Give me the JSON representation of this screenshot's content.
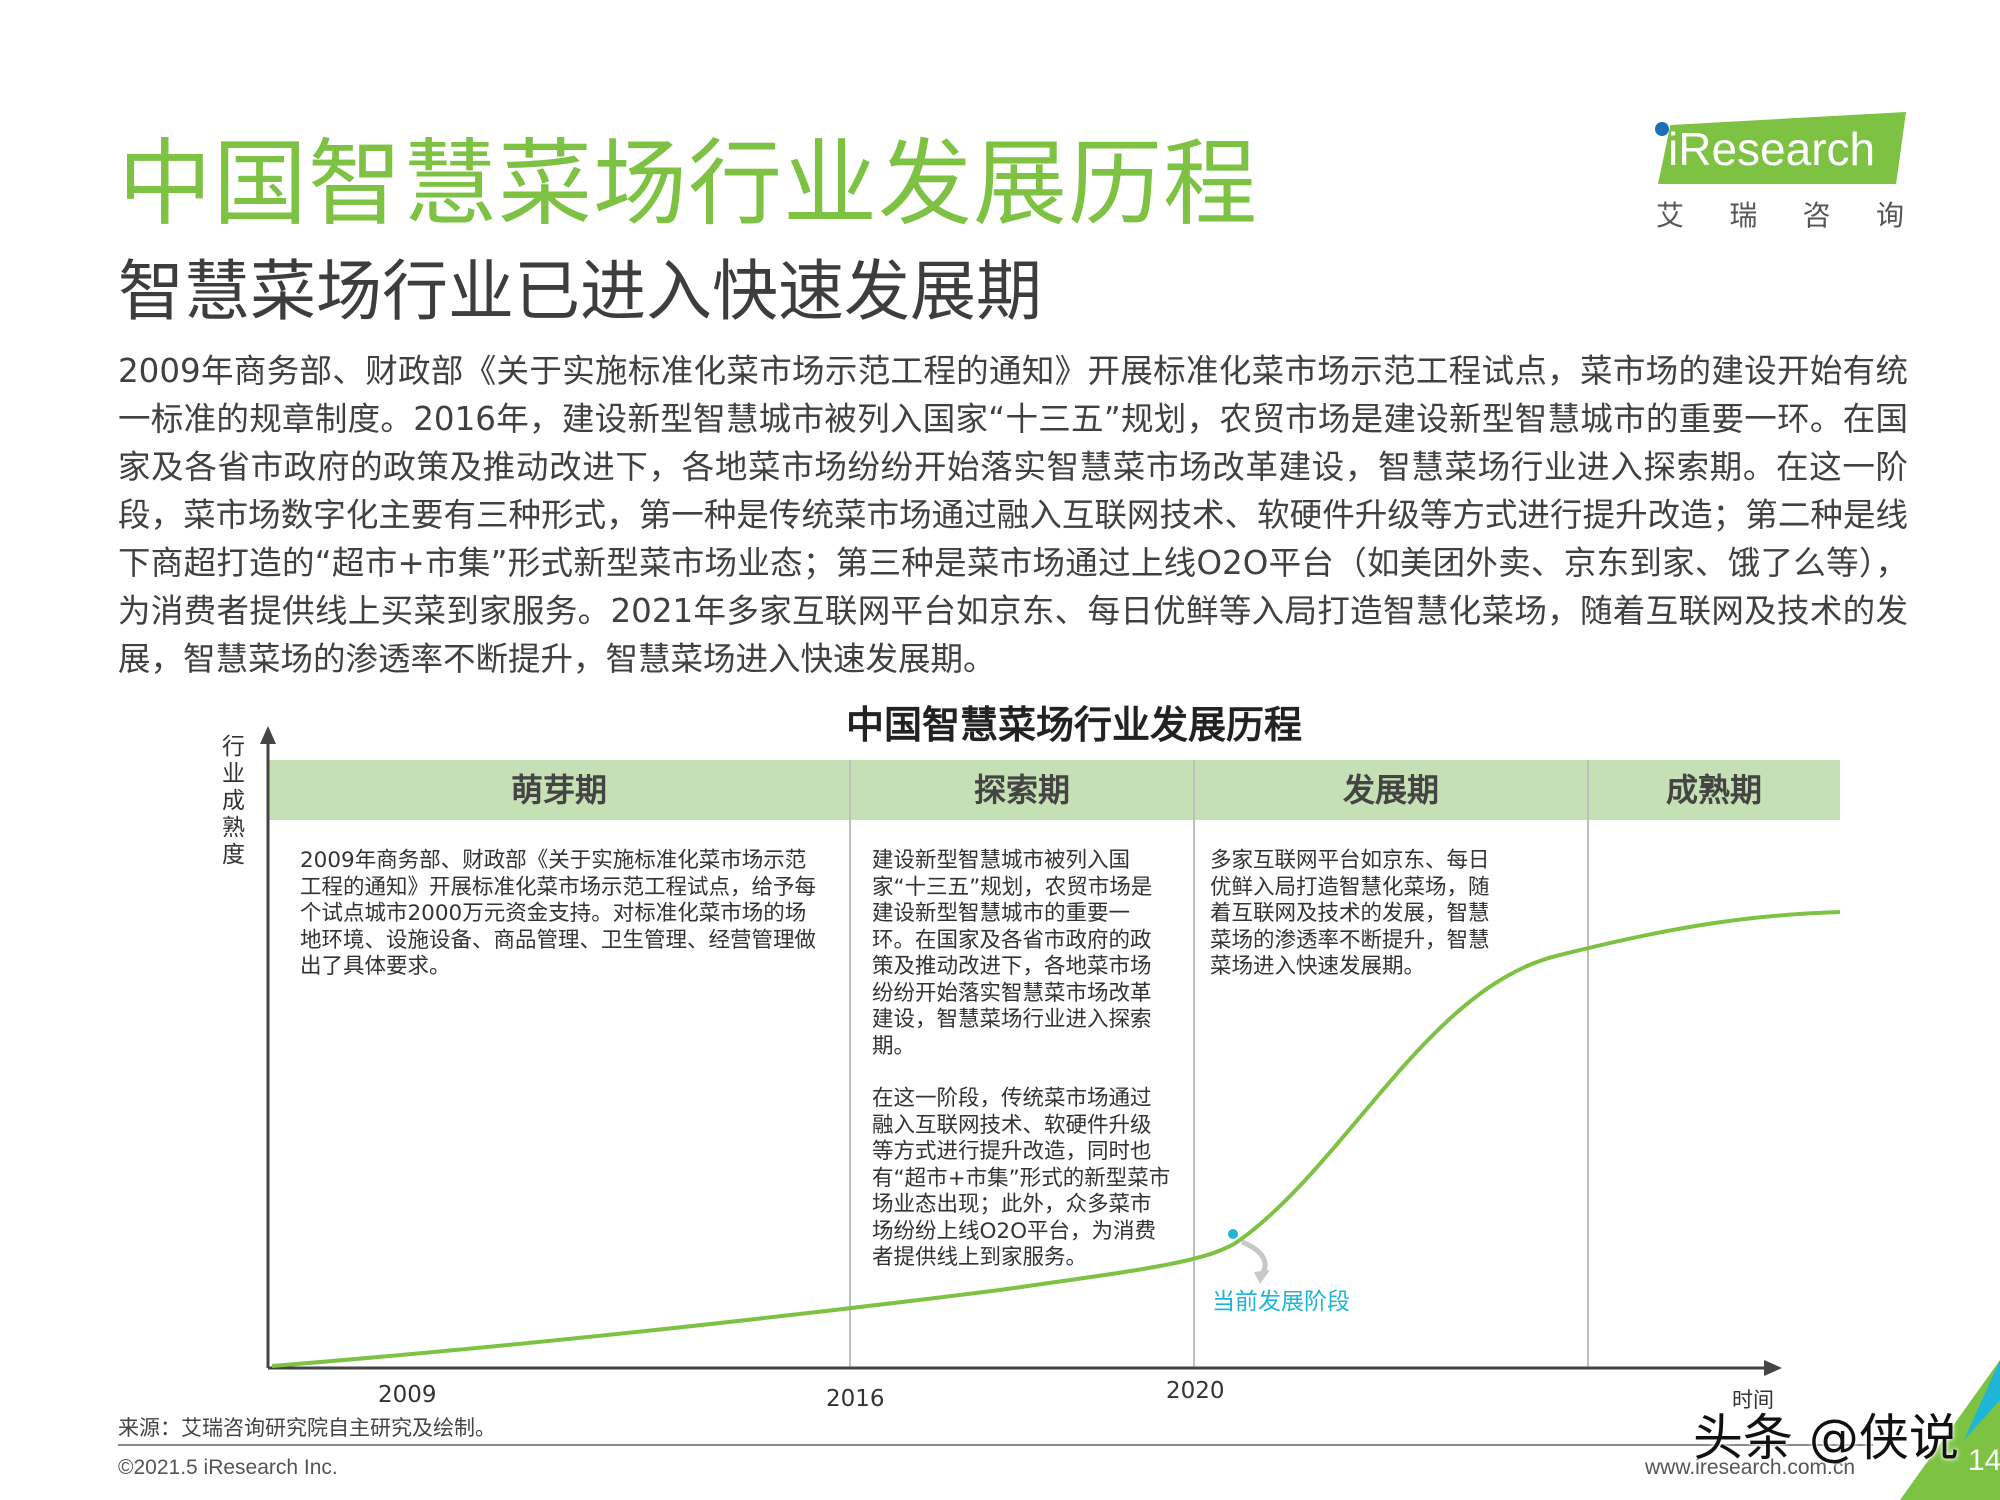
{
  "header": {
    "title": "中国智慧菜场行业发展历程",
    "subtitle": "智慧菜场行业已进入快速发展期",
    "logo": {
      "brand": "iResearch",
      "chinese_chars": [
        "艾",
        "瑞",
        "咨",
        "询"
      ]
    }
  },
  "intro_paragraph": "2009年商务部、财政部《关于实施标准化菜市场示范工程的通知》开展标准化菜市场示范工程试点，菜市场的建设开始有统一标准的规章制度。2016年，建设新型智慧城市被列入国家“十三五”规划，农贸市场是建设新型智慧城市的重要一环。在国家及各省市政府的政策及推动改进下，各地菜市场纷纷开始落实智慧菜市场改革建设，智慧菜场行业进入探索期。在这一阶段，菜市场数字化主要有三种形式，第一种是传统菜市场通过融入互联网技术、软硬件升级等方式进行提升改造；第二种是线下商超打造的“超市+市集”形式新型菜市场业态；第三种是菜市场通过上线O2O平台（如美团外卖、京东到家、饿了么等），为消费者提供线上买菜到家服务。2021年多家互联网平台如京东、每日优鲜等入局打造智慧化菜场，随着互联网及技术的发展，智慧菜场的渗透率不断提升，智慧菜场进入快速发展期。",
  "diagram": {
    "title": "中国智慧菜场行业发展历程",
    "y_axis_label": "行业成熟度",
    "x_axis_label": "时间",
    "stages": [
      {
        "name": "萌芽期",
        "desc": "2009年商务部、财政部《关于实施标准化菜市场示范工程的通知》开展标准化菜市场示范工程试点，给予每个试点城市2000万元资金支持。对标准化菜市场的场地环境、设施设备、商品管理、卫生管理、经营管理做出了具体要求。",
        "desc2": ""
      },
      {
        "name": "探索期",
        "desc": "建设新型智慧城市被列入国家“十三五”规划，农贸市场是建设新型智慧城市的重要一环。在国家及各省市政府的政策及推动改进下，各地菜市场纷纷开始落实智慧菜市场改革建设，智慧菜场行业进入探索期。",
        "desc2": "在这一阶段，传统菜市场通过融入互联网技术、软硬件升级等方式进行提升改造，同时也有“超市+市集”形式的新型菜市场业态出现；此外，众多菜市场纷纷上线O2O平台，为消费者提供线上到家服务。"
      },
      {
        "name": "发展期",
        "desc": "多家互联网平台如京东、每日优鲜入局打造智慧化菜场，随着互联网及技术的发展，智慧菜场的渗透率不断提升，智慧菜场进入快速发展期。",
        "desc2": ""
      },
      {
        "name": "成熟期",
        "desc": "",
        "desc2": ""
      }
    ],
    "years": [
      "2009",
      "2016",
      "2020"
    ],
    "current_stage_label": "当前发展阶段",
    "colors": {
      "stage_header_bg": "#c5e0b4",
      "curve": "#7dc242",
      "current_marker": "#1fb4d8",
      "divider": "#bfbfbf"
    }
  },
  "footer": {
    "source": "来源：艾瑞咨询研究院自主研究及绘制。",
    "copyright": "©2021.5 iResearch Inc.",
    "website": "www.iresearch.com.cn",
    "page_number": "14",
    "watermark": "头条 @侠说"
  }
}
